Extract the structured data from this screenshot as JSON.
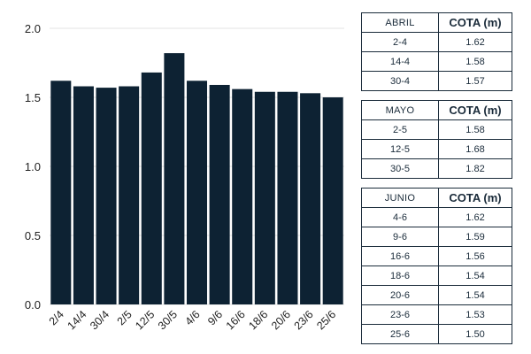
{
  "chart_data": {
    "type": "bar",
    "categories": [
      "2/4",
      "14/4",
      "30/4",
      "2/5",
      "12/5",
      "30/5",
      "4/6",
      "9/6",
      "16/6",
      "18/6",
      "20/6",
      "23/6",
      "25/6"
    ],
    "values": [
      1.62,
      1.58,
      1.57,
      1.58,
      1.68,
      1.82,
      1.62,
      1.59,
      1.56,
      1.54,
      1.54,
      1.53,
      1.5
    ],
    "ylim": [
      0,
      2.0
    ],
    "yticks": [
      "0.0",
      "0.5",
      "1.0",
      "1.5",
      "2.0"
    ],
    "bar_color": "#0d2233",
    "grid": true
  },
  "tables": [
    {
      "month": "ABRIL",
      "header": "COTA (m)",
      "rows": [
        {
          "date": "2-4",
          "value": "1.62"
        },
        {
          "date": "14-4",
          "value": "1.58"
        },
        {
          "date": "30-4",
          "value": "1.57"
        }
      ]
    },
    {
      "month": "MAYO",
      "header": "COTA (m)",
      "rows": [
        {
          "date": "2-5",
          "value": "1.58"
        },
        {
          "date": "12-5",
          "value": "1.68"
        },
        {
          "date": "30-5",
          "value": "1.82"
        }
      ]
    },
    {
      "month": "JUNIO",
      "header": "COTA (m)",
      "rows": [
        {
          "date": "4-6",
          "value": "1.62"
        },
        {
          "date": "9-6",
          "value": "1.59"
        },
        {
          "date": "16-6",
          "value": "1.56"
        },
        {
          "date": "18-6",
          "value": "1.54"
        },
        {
          "date": "20-6",
          "value": "1.54"
        },
        {
          "date": "23-6",
          "value": "1.53"
        },
        {
          "date": "25-6",
          "value": "1.50"
        }
      ]
    }
  ]
}
